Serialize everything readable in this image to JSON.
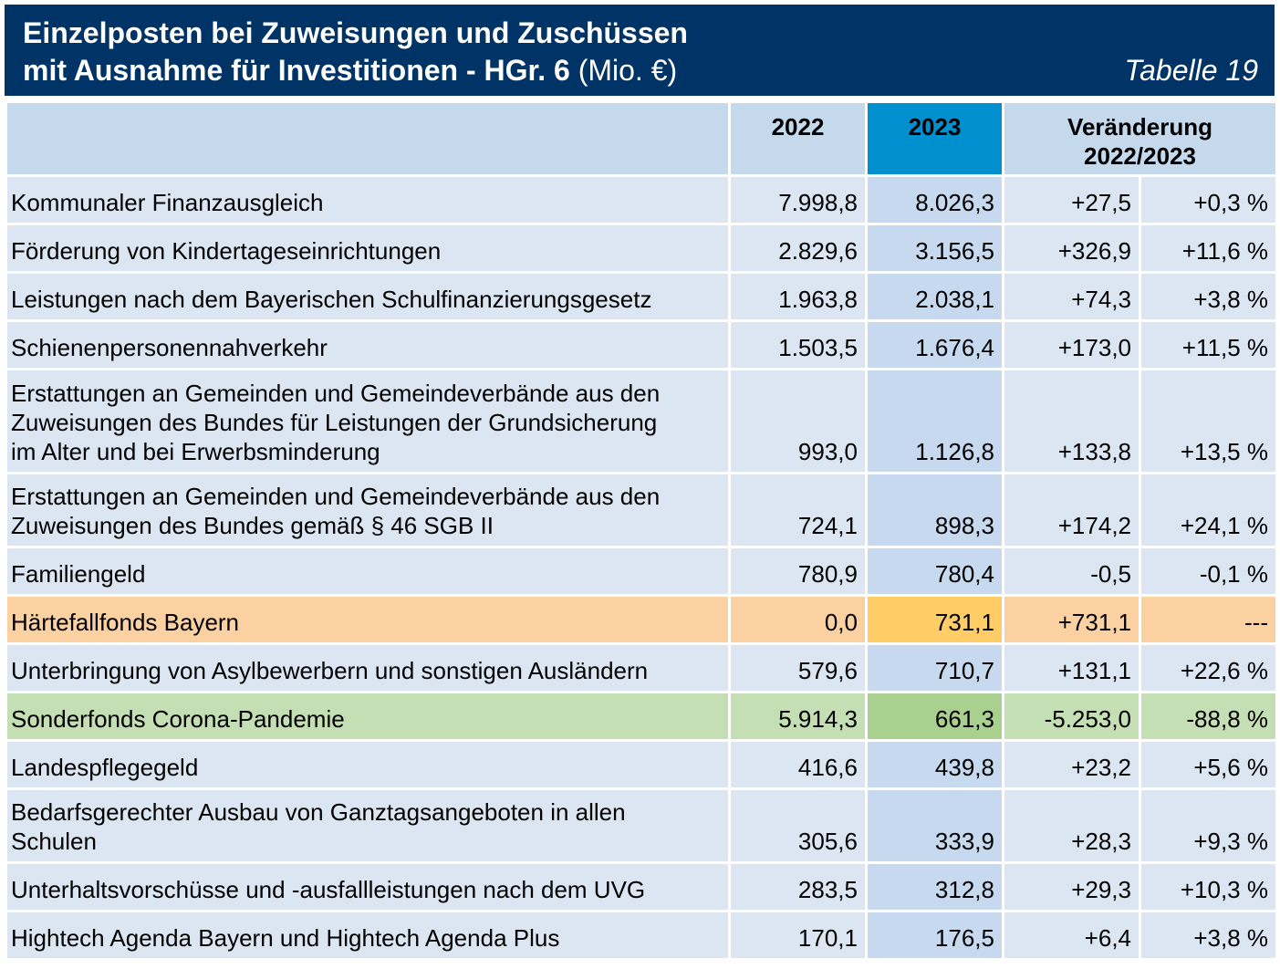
{
  "header": {
    "title_line1": "Einzelposten bei Zuweisungen und Zuschüssen",
    "title_line2_bold": "mit Ausnahme für Investitionen - HGr. 6",
    "title_line2_unit": " (Mio. €)",
    "table_tag": "Tabelle 19"
  },
  "columns": {
    "y2022": "2022",
    "y2023": "2023",
    "change_line1": "Veränderung",
    "change_line2": "2022/2023"
  },
  "rows": [
    {
      "label": "Kommunaler Finanzausgleich",
      "v2022": "7.998,8",
      "v2023": "8.026,3",
      "abs": "+27,5",
      "pct": "+0,3 %"
    },
    {
      "label": "Förderung von Kindertageseinrichtungen",
      "v2022": "2.829,6",
      "v2023": "3.156,5",
      "abs": "+326,9",
      "pct": "+11,6 %"
    },
    {
      "label": "Leistungen nach dem Bayerischen Schulfinanzierungsgesetz",
      "v2022": "1.963,8",
      "v2023": "2.038,1",
      "abs": "+74,3",
      "pct": "+3,8 %"
    },
    {
      "label": "Schienenpersonennahverkehr",
      "v2022": "1.503,5",
      "v2023": "1.676,4",
      "abs": "+173,0",
      "pct": "+11,5 %"
    },
    {
      "label_lines": [
        "Erstattungen an Gemeinden und Gemeindeverbände aus den",
        "Zuweisungen des Bundes für Leistungen der Grundsicherung",
        "im Alter und bei Erwerbsminderung"
      ],
      "v2022": "993,0",
      "v2023": "1.126,8",
      "abs": "+133,8",
      "pct": "+13,5 %"
    },
    {
      "label_lines": [
        "Erstattungen an Gemeinden und Gemeindeverbände aus den",
        "Zuweisungen des Bundes gemäß § 46 SGB II"
      ],
      "v2022": "724,1",
      "v2023": "898,3",
      "abs": "+174,2",
      "pct": "+24,1 %"
    },
    {
      "label": "Familiengeld",
      "v2022": "780,9",
      "v2023": "780,4",
      "abs": "-0,5",
      "pct": "-0,1 %"
    },
    {
      "label": "Härtefallfonds Bayern",
      "v2022": "0,0",
      "v2023": "731,1",
      "abs": "+731,1",
      "pct": "---"
    },
    {
      "label": "Unterbringung von Asylbewerbern und sonstigen Ausländern",
      "v2022": "579,6",
      "v2023": "710,7",
      "abs": "+131,1",
      "pct": "+22,6 %"
    },
    {
      "label": "Sonderfonds Corona-Pandemie",
      "v2022": "5.914,3",
      "v2023": "661,3",
      "abs": "-5.253,0",
      "pct": "-88,8 %"
    },
    {
      "label": "Landespflegegeld",
      "v2022": "416,6",
      "v2023": "439,8",
      "abs": "+23,2",
      "pct": "+5,6 %"
    },
    {
      "label_lines": [
        "Bedarfsgerechter Ausbau von Ganztagsangeboten in allen",
        "Schulen"
      ],
      "v2022": "305,6",
      "v2023": "333,9",
      "abs": "+28,3",
      "pct": "+9,3 %"
    },
    {
      "label": "Unterhaltsvorschüsse und -ausfallleistungen nach dem UVG",
      "v2022": "283,5",
      "v2023": "312,8",
      "abs": "+29,3",
      "pct": "+10,3 %"
    },
    {
      "label": "Hightech Agenda Bayern und Hightech Agenda Plus",
      "v2022": "170,1",
      "v2023": "176,5",
      "abs": "+6,4",
      "pct": "+3,8 %"
    }
  ],
  "colors": {
    "header_bg": "#003366",
    "highlight_2023_header": "#008fcf",
    "orange_row": "#fcd1a2",
    "green_row": "#c4dfb4",
    "negative_text": "#ff0000"
  }
}
